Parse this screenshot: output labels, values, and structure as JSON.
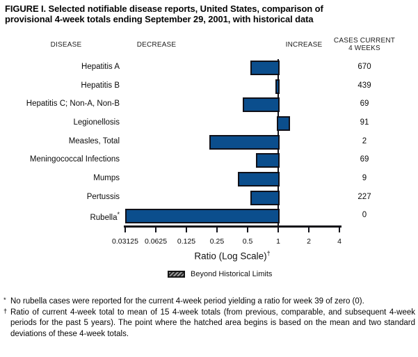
{
  "title": "FIGURE I. Selected notifiable disease reports, United States, comparison of\nprovisional 4-week totals ending September 29, 2001, with historical data",
  "headers": {
    "disease": "DISEASE",
    "decrease": "DECREASE",
    "increase": "INCREASE",
    "cases": "CASES CURRENT\n4 WEEKS"
  },
  "chart_data": {
    "type": "bar",
    "orientation": "horizontal",
    "scale": "log",
    "title": "Selected notifiable disease reports, ratio of current 4-week total to historical mean",
    "xlabel": "Ratio (Log Scale)",
    "xlabel_superscript": "†",
    "axis_ticks": [
      0.03125,
      0.0625,
      0.125,
      0.25,
      0.5,
      1,
      2,
      4
    ],
    "baseline": 1,
    "bar_color": "#0b4e8d",
    "bar_border_color": "#101018",
    "legend": {
      "swatch": "hatched-beyond-limits",
      "label": "Beyond Historical Limits",
      "position": "bottom"
    },
    "rows": [
      {
        "disease": "Hepatitis A",
        "superscript": "",
        "ratio": 0.53,
        "cases": "670"
      },
      {
        "disease": "Hepatitis B",
        "superscript": "",
        "ratio": 0.94,
        "cases": "439"
      },
      {
        "disease": "Hepatitis C; Non-A, Non-B",
        "superscript": "",
        "ratio": 0.45,
        "cases": "69"
      },
      {
        "disease": "Legionellosis",
        "superscript": "",
        "ratio": 1.3,
        "cases": "91"
      },
      {
        "disease": "Measles, Total",
        "superscript": "",
        "ratio": 0.21,
        "cases": "2"
      },
      {
        "disease": "Meningococcal Infections",
        "superscript": "",
        "ratio": 0.6,
        "cases": "69"
      },
      {
        "disease": "Mumps",
        "superscript": "",
        "ratio": 0.4,
        "cases": "9"
      },
      {
        "disease": "Pertussis",
        "superscript": "",
        "ratio": 0.53,
        "cases": "227"
      },
      {
        "disease": "Rubella",
        "superscript": "*",
        "ratio": 0,
        "cases": "0"
      }
    ]
  },
  "footnotes": [
    {
      "marker": "*",
      "text": "No rubella cases were reported for the current 4-week period yielding a ratio for week 39 of zero (0)."
    },
    {
      "marker": "†",
      "text": "Ratio of current 4-week total to mean of 15 4-week totals (from previous, comparable, and subsequent 4-week periods for the past 5 years). The point where the hatched area begins is based on the mean and two standard deviations of these 4-week totals."
    }
  ]
}
